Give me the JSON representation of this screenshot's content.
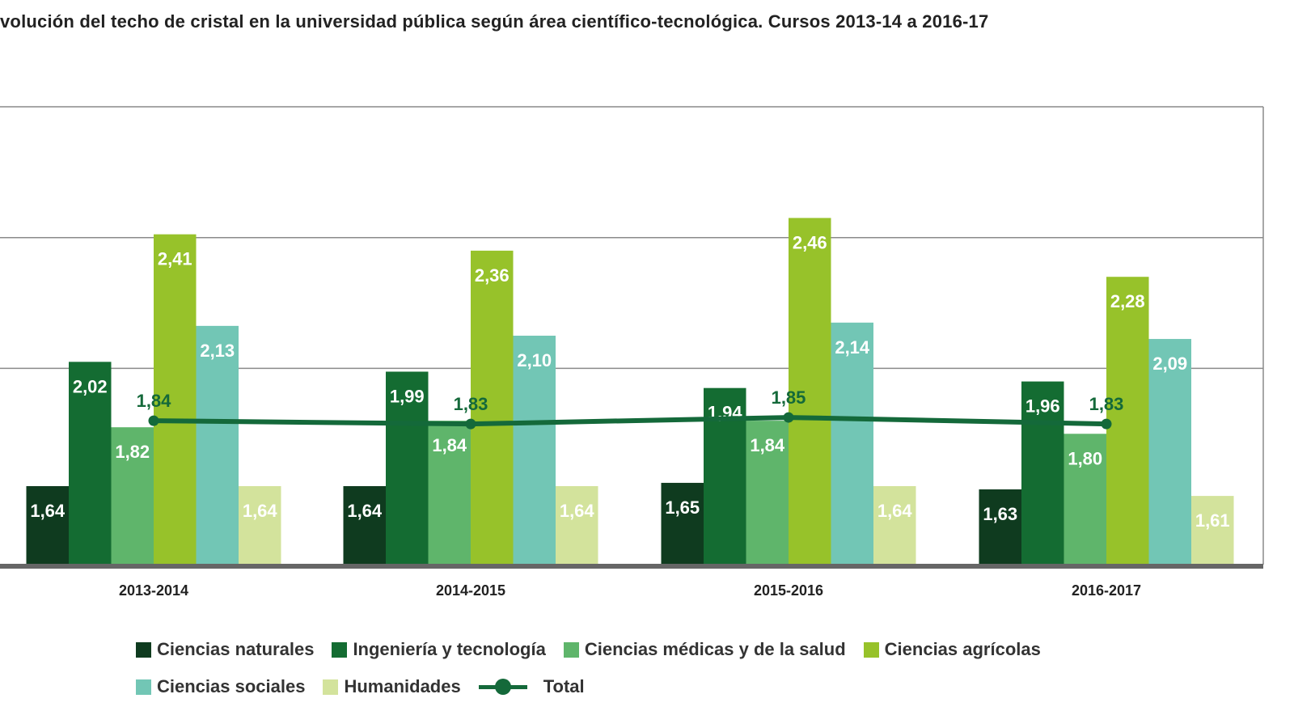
{
  "chart_data": {
    "type": "bar",
    "title": "volución del techo de cristal en la universidad pública según área científico-tecnológica. Cursos 2013-14 a 2016-17",
    "categories": [
      "2013-2014",
      "2014-2015",
      "2015-2016",
      "2016-2017"
    ],
    "series": [
      {
        "name": "Ciencias naturales",
        "color": "#0f3b1f",
        "values": [
          1.64,
          1.64,
          1.65,
          1.63
        ],
        "labels": [
          "1,64",
          "1,64",
          "1,65",
          "1,63"
        ]
      },
      {
        "name": "Ingeniería y tecnología",
        "color": "#146c32",
        "values": [
          2.02,
          1.99,
          1.94,
          1.96
        ],
        "labels": [
          "2,02",
          "1,99",
          "1,94",
          "1,96"
        ]
      },
      {
        "name": "Ciencias médicas y de la salud",
        "color": "#5fb56b",
        "values": [
          1.82,
          1.84,
          1.84,
          1.8
        ],
        "labels": [
          "1,82",
          "1,84",
          "1,84",
          "1,80"
        ]
      },
      {
        "name": "Ciencias agrícolas",
        "color": "#97c22a",
        "values": [
          2.41,
          2.36,
          2.46,
          2.28
        ],
        "labels": [
          "2,41",
          "2,36",
          "2,46",
          "2,28"
        ]
      },
      {
        "name": "Ciencias sociales",
        "color": "#72c6b5",
        "values": [
          2.13,
          2.1,
          2.14,
          2.09
        ],
        "labels": [
          "2,13",
          "2,10",
          "2,14",
          "2,09"
        ]
      },
      {
        "name": "Humanidades",
        "color": "#d3e39c",
        "values": [
          1.64,
          1.64,
          1.64,
          1.61
        ],
        "labels": [
          "1,64",
          "1,64",
          "1,64",
          "1,61"
        ]
      }
    ],
    "line": {
      "name": "Total",
      "color": "#14693a",
      "values": [
        1.84,
        1.83,
        1.85,
        1.83
      ],
      "labels": [
        "1,84",
        "1,83",
        "1,85",
        "1,83"
      ]
    },
    "ylim": [
      1.4,
      2.8
    ],
    "gridlines": [
      2.0,
      2.4,
      2.8
    ],
    "legend": "bottom"
  }
}
